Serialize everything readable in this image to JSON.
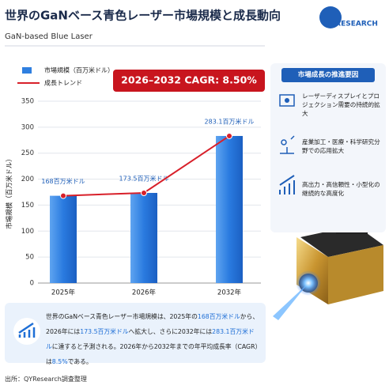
{
  "header": {
    "title": "世界のGaNベース青色レーザー市場規模と成長動向",
    "subtitle": "GaN-based Blue Laser",
    "logo": "QYRESEARCH"
  },
  "chart_data": {
    "type": "bar",
    "cagr": "2026–2032 CAGR: 8.50%",
    "y_label": "市場規模（百万米ドル）",
    "categories": [
      "2025年",
      "2026年",
      "2032年"
    ],
    "series": [
      {
        "name": "市場規模（百万米ドル）",
        "color": "#2f7fe0",
        "values": [
          168,
          173.5,
          283.1
        ],
        "value_labels": [
          "168百万米ドル",
          "173.5百万米ドル",
          "283.1百万米ドル"
        ]
      },
      {
        "name": "成長トレンド",
        "type": "line",
        "color": "#d8202a",
        "values": [
          168,
          173.5,
          283.1
        ]
      }
    ],
    "ylim": [
      0,
      350
    ],
    "yticks": [
      0,
      50,
      100,
      150,
      200,
      250,
      300,
      350
    ],
    "grid": true
  },
  "drivers": {
    "title": "市場成長の推進要因",
    "items": [
      "レーザーディスプレイとプロジェクション需要の持続的拡大",
      "産業加工・医療・科学研究分野での応用拡大",
      "高出力・高信頼性・小型化の継続的な高度化"
    ]
  },
  "summary": [
    "世界のGaNベース青色レーザー市場規模は、2025年の",
    "168百万米ドル",
    "から、2026年には",
    "173.5百万米ドル",
    "へ拡大し、さらに2032年には",
    "283.1百万米ドル",
    "に達すると予測される。2026年から2032年までの年平均成長率（CAGR）は",
    "8.5%",
    "である。"
  ],
  "source": "出所：QYResearch調査整理"
}
